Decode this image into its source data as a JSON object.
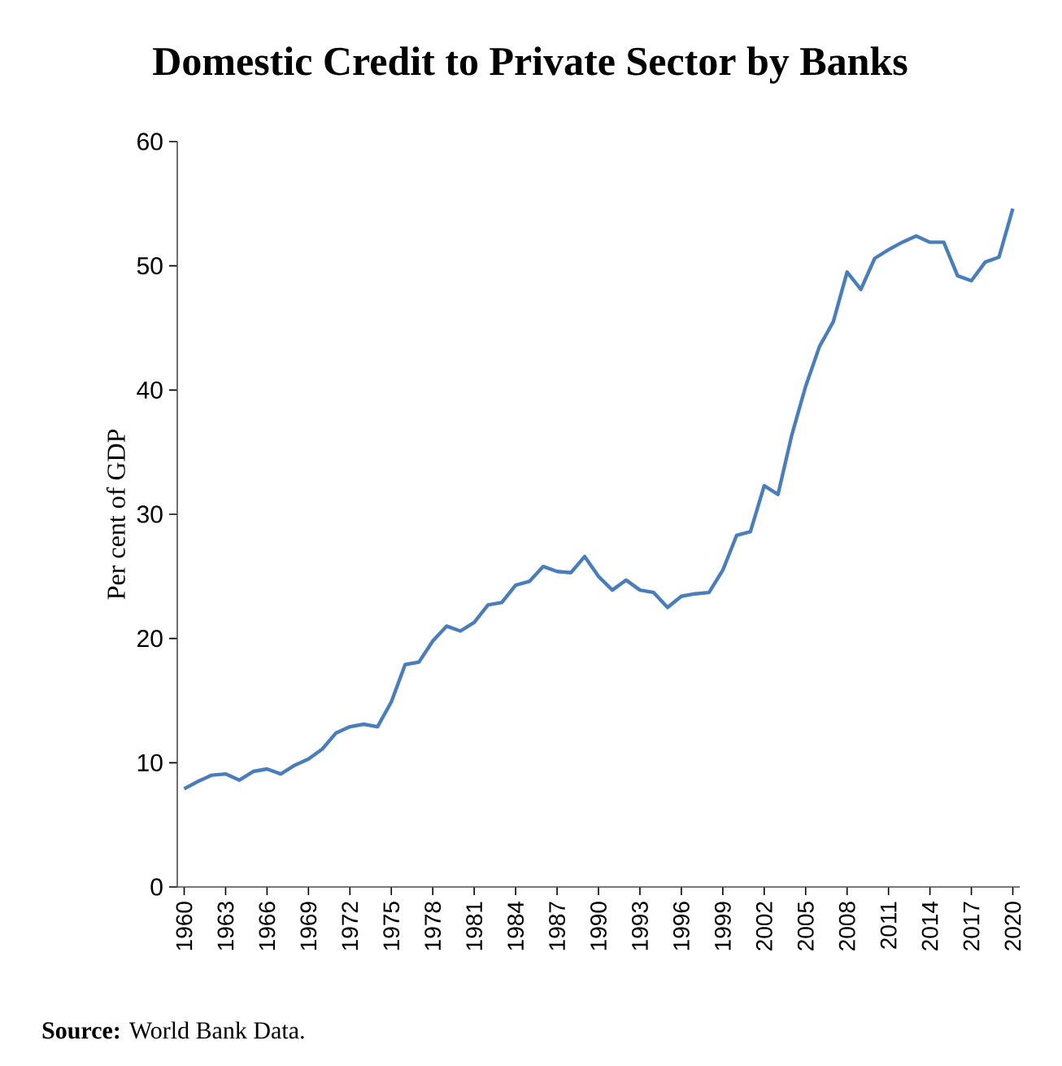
{
  "chart_data": {
    "type": "line",
    "title": "Domestic Credit to Private Sector by Banks",
    "ylabel": "Per cent of GDP",
    "categories": [
      "1960",
      null,
      null,
      "1963",
      null,
      null,
      "1966",
      null,
      null,
      "1969",
      null,
      null,
      "1972",
      null,
      null,
      "1975",
      null,
      null,
      "1978",
      null,
      null,
      "1981",
      null,
      null,
      "1984",
      null,
      null,
      "1987",
      null,
      null,
      "1990",
      null,
      null,
      "1993",
      null,
      null,
      "1996",
      null,
      null,
      "1999",
      null,
      null,
      "2002",
      null,
      null,
      "2005",
      null,
      null,
      "2008",
      null,
      null,
      "2011",
      null,
      null,
      "2014",
      null,
      null,
      "2017",
      null,
      null,
      "2020"
    ],
    "values": [
      7.9,
      8.5,
      9.0,
      9.1,
      8.6,
      9.3,
      9.5,
      9.1,
      9.8,
      10.3,
      11.1,
      12.4,
      12.9,
      13.1,
      12.9,
      14.9,
      17.9,
      18.1,
      19.8,
      21.0,
      20.6,
      21.3,
      22.7,
      22.9,
      24.3,
      24.6,
      25.8,
      25.4,
      25.3,
      26.6,
      25.0,
      23.9,
      24.7,
      23.9,
      23.7,
      22.5,
      23.4,
      23.6,
      23.7,
      25.5,
      28.3,
      28.6,
      32.3,
      31.6,
      36.4,
      40.3,
      43.5,
      45.5,
      49.5,
      48.1,
      50.6,
      51.3,
      51.9,
      52.4,
      51.9,
      51.9,
      49.2,
      48.8,
      50.3,
      50.7,
      54.6
    ],
    "color": "#4a7ebb",
    "ylim": [
      0,
      60
    ],
    "yticks": [
      0,
      10,
      20,
      30,
      40,
      50,
      60
    ],
    "marker": "none",
    "line_style": "solid",
    "annotations": [
      "**Source:** World Bank Data."
    ]
  }
}
